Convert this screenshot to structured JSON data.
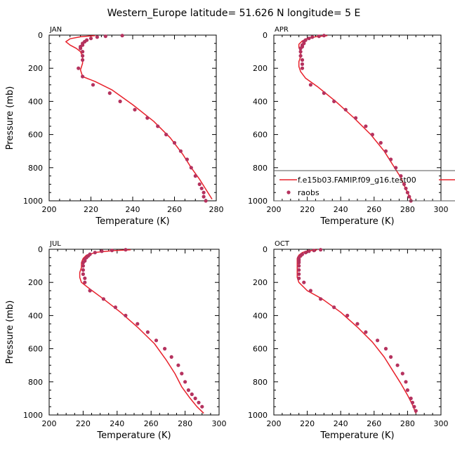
{
  "figure": {
    "title": "Western_Europe  latitude= 51.626 N longitude= 5 E"
  },
  "colors": {
    "model_line": "#e8202a",
    "obs_marker": "#b5325e",
    "axis": "#000000"
  },
  "legend": {
    "model_label": "f.e15b03.FAMIP.f09_g16.test00",
    "obs_label": "raobs"
  },
  "chart_data": [
    {
      "type": "line",
      "panel": "JAN",
      "xlabel": "Temperature (K)",
      "ylabel": "Pressure (mb)",
      "xlim": [
        200,
        280
      ],
      "ylim": [
        1000,
        0
      ],
      "xticks": [
        200,
        220,
        240,
        260,
        280
      ],
      "yticks": [
        0,
        200,
        400,
        600,
        800,
        1000
      ],
      "series": [
        {
          "name": "f.e15b03.FAMIP.f09_g16.test00",
          "marker": "line",
          "x": [
            222,
            215,
            210,
            208,
            210,
            213,
            215,
            216,
            216,
            215,
            216,
            222,
            230,
            240,
            250,
            258,
            264,
            268,
            272,
            275,
            278
          ],
          "y": [
            3,
            10,
            22,
            40,
            60,
            80,
            100,
            130,
            170,
            210,
            250,
            280,
            330,
            420,
            520,
            620,
            720,
            800,
            870,
            930,
            990
          ]
        },
        {
          "name": "raobs",
          "marker": "dot",
          "x": [
            235,
            227,
            223,
            220,
            218,
            217,
            216,
            216,
            215,
            215,
            216,
            216,
            216,
            214,
            216,
            221,
            229,
            234,
            241,
            247,
            252,
            256,
            260,
            263,
            266,
            268,
            270,
            272,
            273,
            274,
            274,
            275
          ],
          "y": [
            3,
            7,
            12,
            20,
            30,
            40,
            50,
            60,
            70,
            80,
            100,
            125,
            150,
            200,
            250,
            300,
            350,
            400,
            450,
            500,
            550,
            600,
            650,
            700,
            750,
            800,
            850,
            900,
            925,
            950,
            975,
            1000
          ]
        }
      ]
    },
    {
      "type": "line",
      "panel": "APR",
      "xlabel": "Temperature (K)",
      "ylabel": "",
      "xlim": [
        200,
        300
      ],
      "ylim": [
        1000,
        0
      ],
      "xticks": [
        200,
        220,
        240,
        260,
        280,
        300
      ],
      "yticks": [
        0,
        200,
        400,
        600,
        800,
        1000
      ],
      "series": [
        {
          "name": "f.e15b03.FAMIP.f09_g16.test00",
          "marker": "line",
          "x": [
            232,
            225,
            220,
            217,
            215,
            215,
            216,
            216,
            215,
            215,
            216,
            219,
            226,
            237,
            248,
            258,
            266,
            271,
            276,
            279,
            282
          ],
          "y": [
            3,
            10,
            20,
            35,
            55,
            75,
            100,
            130,
            160,
            190,
            220,
            260,
            310,
            400,
            500,
            600,
            700,
            780,
            860,
            930,
            990
          ]
        },
        {
          "name": "raobs",
          "marker": "dot",
          "x": [
            230,
            227,
            223,
            221,
            219,
            218,
            218,
            217,
            217,
            216,
            216,
            216,
            217,
            217,
            217,
            222,
            230,
            236,
            243,
            249,
            255,
            259,
            264,
            267,
            270,
            273,
            276,
            278,
            279,
            280,
            281,
            282
          ],
          "y": [
            3,
            7,
            12,
            20,
            30,
            40,
            50,
            60,
            70,
            80,
            100,
            125,
            150,
            175,
            200,
            300,
            350,
            400,
            450,
            500,
            550,
            600,
            650,
            700,
            750,
            800,
            850,
            900,
            925,
            950,
            975,
            1000
          ]
        }
      ]
    },
    {
      "type": "line",
      "panel": "JUL",
      "xlabel": "Temperature (K)",
      "ylabel": "Pressure (mb)",
      "xlim": [
        200,
        300
      ],
      "ylim": [
        1000,
        0
      ],
      "xticks": [
        200,
        220,
        240,
        260,
        280,
        300
      ],
      "yticks": [
        0,
        200,
        400,
        600,
        800,
        1000
      ],
      "series": [
        {
          "name": "f.e15b03.FAMIP.f09_g16.test00",
          "marker": "line",
          "x": [
            248,
            238,
            228,
            222,
            220,
            219,
            219,
            218,
            218,
            219,
            224,
            232,
            242,
            252,
            262,
            269,
            274,
            278,
            283,
            287,
            291
          ],
          "y": [
            3,
            8,
            18,
            35,
            55,
            80,
            110,
            140,
            170,
            200,
            240,
            300,
            380,
            470,
            570,
            670,
            750,
            830,
            900,
            950,
            990
          ]
        },
        {
          "name": "raobs",
          "marker": "dot",
          "x": [
            245,
            237,
            231,
            227,
            224,
            223,
            222,
            221,
            221,
            220,
            220,
            220,
            220,
            221,
            221,
            224,
            232,
            239,
            245,
            252,
            258,
            263,
            268,
            272,
            276,
            278,
            280,
            282,
            284,
            286,
            288,
            290
          ],
          "y": [
            3,
            7,
            12,
            20,
            30,
            40,
            50,
            60,
            70,
            80,
            100,
            125,
            150,
            175,
            200,
            250,
            300,
            350,
            400,
            450,
            500,
            550,
            600,
            650,
            700,
            750,
            800,
            850,
            875,
            900,
            925,
            950
          ]
        }
      ]
    },
    {
      "type": "line",
      "panel": "OCT",
      "xlabel": "Temperature (K)",
      "ylabel": "",
      "xlim": [
        200,
        300
      ],
      "ylim": [
        1000,
        0
      ],
      "xticks": [
        200,
        220,
        240,
        260,
        280,
        300
      ],
      "yticks": [
        0,
        200,
        400,
        600,
        800,
        1000
      ],
      "series": [
        {
          "name": "f.e15b03.FAMIP.f09_g16.test00",
          "marker": "line",
          "x": [
            226,
            220,
            217,
            215,
            214,
            214,
            214,
            214,
            214,
            215,
            220,
            229,
            240,
            250,
            259,
            266,
            271,
            276,
            280,
            283,
            285
          ],
          "y": [
            3,
            10,
            20,
            35,
            55,
            80,
            110,
            140,
            170,
            200,
            250,
            300,
            380,
            470,
            560,
            650,
            730,
            810,
            880,
            940,
            990
          ]
        },
        {
          "name": "raobs",
          "marker": "dot",
          "x": [
            228,
            224,
            221,
            219,
            217,
            216,
            215,
            215,
            215,
            215,
            215,
            215,
            215,
            215,
            218,
            222,
            228,
            236,
            244,
            250,
            255,
            262,
            267,
            270,
            274,
            277,
            279,
            280,
            282,
            283,
            284,
            285
          ],
          "y": [
            3,
            7,
            12,
            20,
            30,
            40,
            50,
            60,
            70,
            80,
            100,
            125,
            150,
            175,
            200,
            250,
            300,
            350,
            400,
            450,
            500,
            550,
            600,
            650,
            700,
            750,
            800,
            850,
            900,
            925,
            950,
            975
          ]
        }
      ]
    }
  ]
}
